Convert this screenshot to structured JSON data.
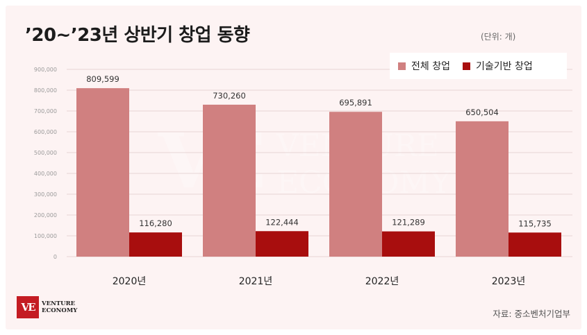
{
  "title": "’20~’23년 상반기 창업 동향",
  "unit_note": "(단위: 개)",
  "source": "자료: 중소벤처기업부",
  "logo": {
    "mark": "VE",
    "line1": "VENTURE",
    "line2": "ECONOMY"
  },
  "watermark": {
    "mark": "VE",
    "line1": "VENTURE",
    "line2": "ECONOMY"
  },
  "colors": {
    "total": "#d08080",
    "tech": "#a80e0e",
    "background": "#fdf3f3"
  },
  "chart_data": {
    "type": "bar",
    "categories": [
      "2020년",
      "2021년",
      "2022년",
      "2023년"
    ],
    "series": [
      {
        "name": "전체 창업",
        "values": [
          809599,
          730260,
          695891,
          650504
        ],
        "labels": [
          "809,599",
          "730,260",
          "695,891",
          "650,504"
        ]
      },
      {
        "name": "기술기반 창업",
        "values": [
          116280,
          122444,
          121289,
          115735
        ],
        "labels": [
          "116,280",
          "122,444",
          "121,289",
          "115,735"
        ]
      }
    ],
    "yticks": [
      "0",
      "100,000",
      "200,000",
      "300,000",
      "400,000",
      "500,000",
      "600,000",
      "700,000",
      "800,000",
      "900,000"
    ],
    "ylim": [
      0,
      900000
    ],
    "grid": true,
    "legend_position": "top-right"
  }
}
